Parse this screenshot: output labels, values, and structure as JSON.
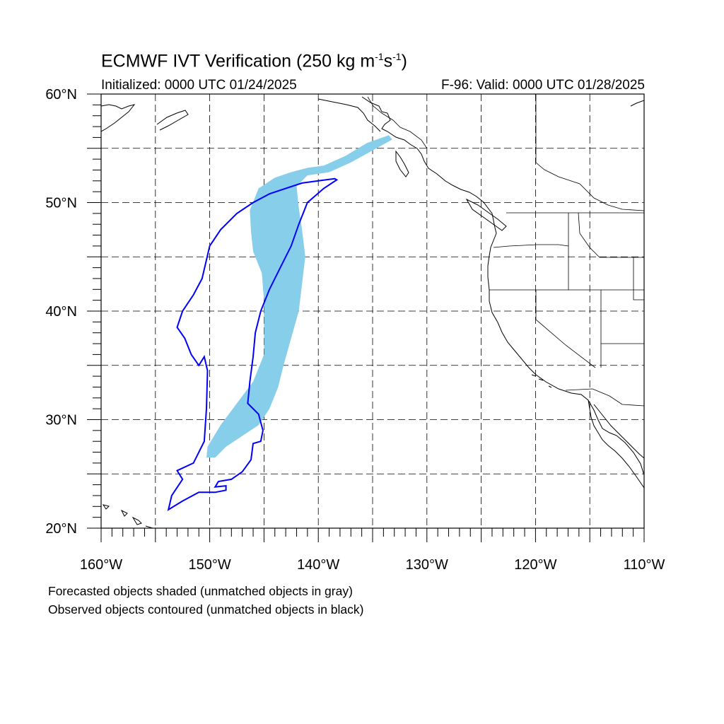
{
  "title": {
    "prefix": "ECMWF IVT Verification (250 kg m",
    "sup1": "-1",
    "mid": "s",
    "sup2": "-1",
    "suffix": ")"
  },
  "initialized": "Initialized: 0000 UTC 01/24/2025",
  "valid": "F-96: Valid: 0000 UTC 01/28/2025",
  "axes": {
    "lon_min": -160,
    "lon_max": -110,
    "lat_min": 20,
    "lat_max": 60,
    "x_ticks": [
      {
        "value": -160,
        "label": "160°W"
      },
      {
        "value": -150,
        "label": "150°W"
      },
      {
        "value": -140,
        "label": "140°W"
      },
      {
        "value": -130,
        "label": "130°W"
      },
      {
        "value": -120,
        "label": "120°W"
      },
      {
        "value": -110,
        "label": "110°W"
      }
    ],
    "y_ticks": [
      {
        "value": 60,
        "label": "60°N"
      },
      {
        "value": 50,
        "label": "50°N"
      },
      {
        "value": 40,
        "label": "40°N"
      },
      {
        "value": 30,
        "label": "30°N"
      },
      {
        "value": 20,
        "label": "20°N"
      }
    ],
    "grid_lon_step": 5,
    "grid_lat_step": 5,
    "grid": true
  },
  "colors": {
    "forecast_fill": "#87ceeb",
    "observed_contour": "#0000ff",
    "coast": "#000000",
    "grid": "#000000"
  },
  "forecast_object": {
    "points": [
      [
        -133.5,
        56.2
      ],
      [
        -135.5,
        55.5
      ],
      [
        -137.5,
        54.3
      ],
      [
        -139.5,
        53.4
      ],
      [
        -141,
        53.2
      ],
      [
        -142.5,
        52.8
      ],
      [
        -144,
        52.3
      ],
      [
        -145.5,
        51.3
      ],
      [
        -146.3,
        49.3
      ],
      [
        -146.2,
        47.3
      ],
      [
        -146,
        45.5
      ],
      [
        -145.2,
        43.5
      ],
      [
        -145,
        41
      ],
      [
        -145,
        38.5
      ],
      [
        -145,
        36
      ],
      [
        -146,
        33.5
      ],
      [
        -147.5,
        31.5
      ],
      [
        -149,
        29.5
      ],
      [
        -150.2,
        27.5
      ],
      [
        -150.3,
        26.5
      ],
      [
        -149.5,
        26.5
      ],
      [
        -148.5,
        27.5
      ],
      [
        -147,
        28.5
      ],
      [
        -145.5,
        29.5
      ],
      [
        -144.5,
        31
      ],
      [
        -143.7,
        33
      ],
      [
        -143.2,
        35
      ],
      [
        -142.5,
        37.5
      ],
      [
        -141.8,
        40
      ],
      [
        -141.5,
        42.5
      ],
      [
        -141.2,
        45
      ],
      [
        -141.5,
        47.5
      ],
      [
        -141.8,
        49.5
      ],
      [
        -142,
        51.5
      ],
      [
        -141,
        52.5
      ],
      [
        -139,
        52.8
      ],
      [
        -137,
        53.7
      ],
      [
        -135,
        54.8
      ],
      [
        -133.2,
        55.8
      ]
    ]
  },
  "observed_object": {
    "points": [
      [
        -138.5,
        52.2
      ],
      [
        -140,
        52
      ],
      [
        -141.5,
        51.8
      ],
      [
        -143,
        51.3
      ],
      [
        -144.5,
        50.8
      ],
      [
        -146,
        50
      ],
      [
        -147.5,
        49
      ],
      [
        -149,
        47.5
      ],
      [
        -150,
        46
      ],
      [
        -150.7,
        43
      ],
      [
        -151.5,
        41.5
      ],
      [
        -152.5,
        40
      ],
      [
        -153,
        38.5
      ],
      [
        -152.3,
        37.5
      ],
      [
        -151.7,
        36
      ],
      [
        -151,
        35
      ],
      [
        -150.5,
        35.8
      ],
      [
        -150.2,
        34.5
      ],
      [
        -150.3,
        31
      ],
      [
        -150.5,
        28
      ],
      [
        -151.5,
        26
      ],
      [
        -153,
        25.3
      ],
      [
        -152.5,
        24.5
      ],
      [
        -153.5,
        23
      ],
      [
        -153.8,
        21.7
      ],
      [
        -152.5,
        22.5
      ],
      [
        -151,
        23.3
      ],
      [
        -149.5,
        23.3
      ],
      [
        -148.5,
        23.5
      ],
      [
        -148.5,
        23.9
      ],
      [
        -149.5,
        23.8
      ],
      [
        -149.2,
        24.3
      ],
      [
        -148,
        24.5
      ],
      [
        -147,
        25.2
      ],
      [
        -146.2,
        26.3
      ],
      [
        -146,
        27.8
      ],
      [
        -145.3,
        28
      ],
      [
        -145.1,
        29
      ],
      [
        -145.5,
        30.5
      ],
      [
        -146.5,
        31.5
      ],
      [
        -146.3,
        33.5
      ],
      [
        -146,
        35.8
      ],
      [
        -145.8,
        38
      ],
      [
        -145.3,
        40
      ],
      [
        -144.5,
        42
      ],
      [
        -143.5,
        44
      ],
      [
        -142.5,
        46
      ],
      [
        -141.8,
        48
      ],
      [
        -141,
        50
      ],
      [
        -139.5,
        51.3
      ],
      [
        -138.3,
        52.1
      ]
    ]
  },
  "captions": [
    "Forecasted objects shaded (unmatched objects in gray)",
    "Observed objects contoured (unmatched objects in black)"
  ]
}
